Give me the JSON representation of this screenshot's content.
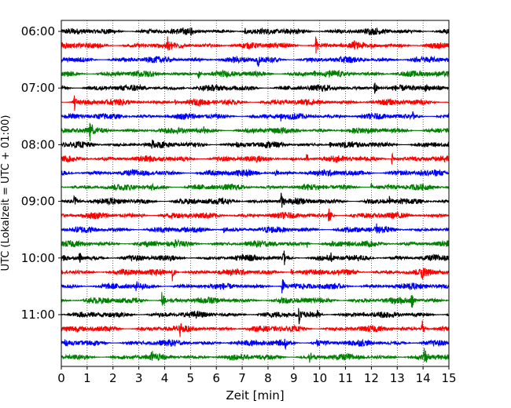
{
  "chart_data": {
    "type": "line",
    "title": "",
    "xlabel": "Zeit  [min]",
    "ylabel": "UTC (Lokalzeit = UTC + 01:00)",
    "xlim": [
      0,
      15
    ],
    "x_ticks": [
      0,
      1,
      2,
      3,
      4,
      5,
      6,
      7,
      8,
      9,
      10,
      11,
      12,
      13,
      14,
      15
    ],
    "x_tick_labels": [
      "0",
      "1",
      "2",
      "3",
      "4",
      "5",
      "6",
      "7",
      "8",
      "9",
      "10",
      "11",
      "12",
      "13",
      "14",
      "15"
    ],
    "x_grid": true,
    "x_grid_style": "dotted",
    "y_tick_labels": [
      "06:00",
      "07:00",
      "08:00",
      "09:00",
      "10:00",
      "11:00"
    ],
    "y_tick_trace_index": [
      0,
      4,
      8,
      12,
      16,
      20
    ],
    "trace_interval_minutes": 15,
    "color_cycle": [
      "#000000",
      "#ff0000",
      "#0000ff",
      "#008000"
    ],
    "traces": [
      {
        "start": "06:00",
        "color": "#000000",
        "events": [
          {
            "t": 5.0,
            "a": 0.45
          },
          {
            "t": 7.1,
            "a": 0.4
          }
        ]
      },
      {
        "start": "06:15",
        "color": "#ff0000",
        "events": [
          {
            "t": 4.1,
            "a": 0.7
          },
          {
            "t": 9.85,
            "a": 0.95
          },
          {
            "t": 11.3,
            "a": 0.35
          }
        ]
      },
      {
        "start": "06:30",
        "color": "#0000ff",
        "events": [
          {
            "t": 7.6,
            "a": 0.75
          },
          {
            "t": 13.7,
            "a": 0.35
          }
        ]
      },
      {
        "start": "06:45",
        "color": "#008000",
        "events": [
          {
            "t": 5.3,
            "a": 0.45
          },
          {
            "t": 9.8,
            "a": 0.35
          }
        ]
      },
      {
        "start": "07:00",
        "color": "#000000",
        "events": [
          {
            "t": 12.1,
            "a": 1.1
          },
          {
            "t": 14.1,
            "a": 0.35
          }
        ]
      },
      {
        "start": "07:15",
        "color": "#ff0000",
        "events": [
          {
            "t": 0.5,
            "a": 0.85
          },
          {
            "t": 4.4,
            "a": 0.3
          }
        ]
      },
      {
        "start": "07:30",
        "color": "#0000ff",
        "events": [
          {
            "t": 8.5,
            "a": 0.35
          },
          {
            "t": 13.6,
            "a": 0.3
          }
        ]
      },
      {
        "start": "07:45",
        "color": "#008000",
        "events": [
          {
            "t": 1.1,
            "a": 0.85
          },
          {
            "t": 5.5,
            "a": 0.3
          }
        ]
      },
      {
        "start": "08:00",
        "color": "#000000",
        "events": [
          {
            "t": 3.5,
            "a": 0.35
          },
          {
            "t": 10.4,
            "a": 0.3
          }
        ]
      },
      {
        "start": "08:15",
        "color": "#ff0000",
        "events": [
          {
            "t": 4.55,
            "a": 0.45
          },
          {
            "t": 9.5,
            "a": 0.4
          },
          {
            "t": 12.8,
            "a": 0.5
          }
        ]
      },
      {
        "start": "08:30",
        "color": "#0000ff",
        "events": [
          {
            "t": 8.3,
            "a": 0.4
          },
          {
            "t": 13.9,
            "a": 0.3
          }
        ]
      },
      {
        "start": "08:45",
        "color": "#008000",
        "events": [
          {
            "t": 3.5,
            "a": 0.3
          },
          {
            "t": 12.0,
            "a": 0.3
          }
        ]
      },
      {
        "start": "09:00",
        "color": "#000000",
        "events": [
          {
            "t": 0.5,
            "a": 0.7
          },
          {
            "t": 8.5,
            "a": 0.95
          },
          {
            "t": 12.7,
            "a": 0.35
          }
        ]
      },
      {
        "start": "09:15",
        "color": "#ff0000",
        "events": [
          {
            "t": 10.35,
            "a": 0.9
          },
          {
            "t": 3.1,
            "a": 0.3
          }
        ]
      },
      {
        "start": "09:30",
        "color": "#0000ff",
        "events": [
          {
            "t": 6.3,
            "a": 0.45
          },
          {
            "t": 12.2,
            "a": 0.35
          }
        ]
      },
      {
        "start": "09:45",
        "color": "#008000",
        "events": [
          {
            "t": 4.4,
            "a": 0.3
          },
          {
            "t": 9.5,
            "a": 0.35
          }
        ]
      },
      {
        "start": "10:00",
        "color": "#000000",
        "events": [
          {
            "t": 0.7,
            "a": 0.6
          },
          {
            "t": 8.6,
            "a": 0.95
          },
          {
            "t": 10.4,
            "a": 0.4
          }
        ]
      },
      {
        "start": "10:15",
        "color": "#ff0000",
        "events": [
          {
            "t": 4.3,
            "a": 0.7
          },
          {
            "t": 13.95,
            "a": 0.85
          },
          {
            "t": 8.9,
            "a": 0.35
          }
        ]
      },
      {
        "start": "10:30",
        "color": "#0000ff",
        "events": [
          {
            "t": 8.55,
            "a": 0.8
          },
          {
            "t": 2.9,
            "a": 0.3
          }
        ]
      },
      {
        "start": "10:45",
        "color": "#008000",
        "events": [
          {
            "t": 3.9,
            "a": 0.9
          },
          {
            "t": 13.55,
            "a": 0.75
          }
        ]
      },
      {
        "start": "11:00",
        "color": "#000000",
        "events": [
          {
            "t": 9.2,
            "a": 0.8
          },
          {
            "t": 9.9,
            "a": 0.5
          },
          {
            "t": 11.7,
            "a": 0.3
          }
        ]
      },
      {
        "start": "11:15",
        "color": "#ff0000",
        "events": [
          {
            "t": 4.6,
            "a": 0.55
          },
          {
            "t": 13.95,
            "a": 0.85
          }
        ]
      },
      {
        "start": "11:30",
        "color": "#0000ff",
        "events": [
          {
            "t": 8.65,
            "a": 0.65
          },
          {
            "t": 9.9,
            "a": 0.35
          }
        ]
      },
      {
        "start": "11:45",
        "color": "#008000",
        "events": [
          {
            "t": 3.5,
            "a": 0.6
          },
          {
            "t": 9.6,
            "a": 0.45
          },
          {
            "t": 14.05,
            "a": 0.75
          }
        ]
      }
    ]
  }
}
